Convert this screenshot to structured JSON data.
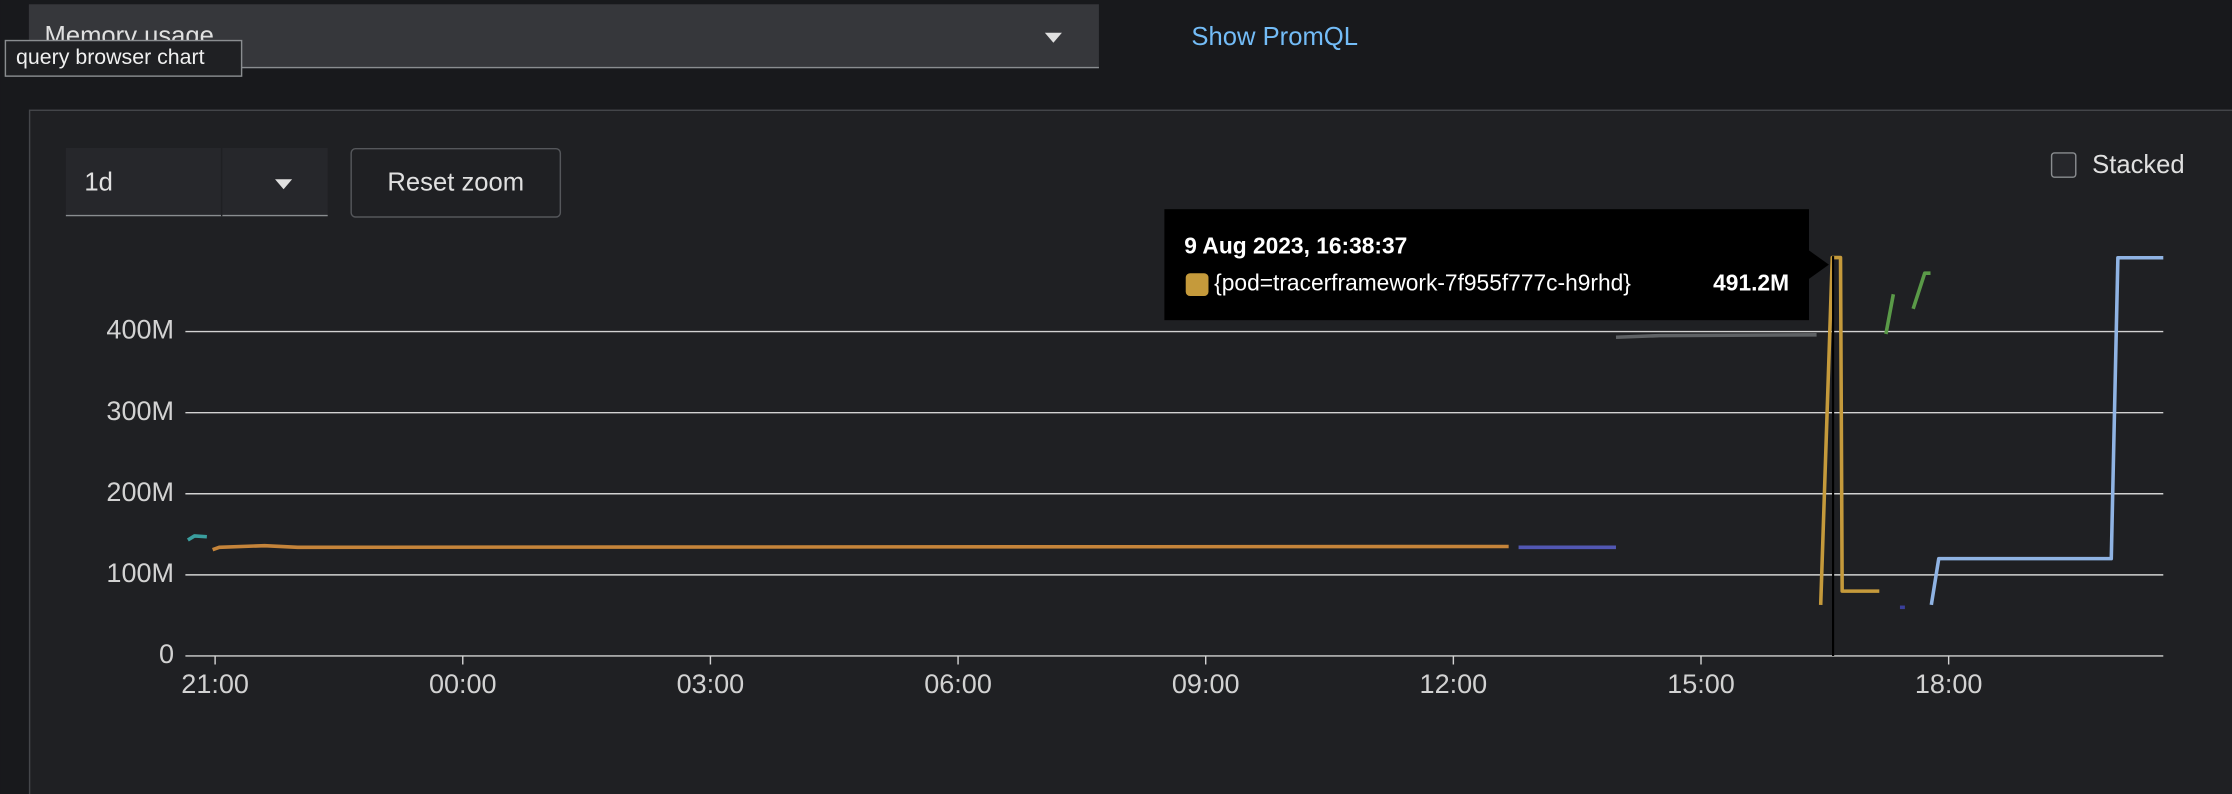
{
  "header": {
    "query_select": "Memory usage",
    "show_promql": "Show PromQL",
    "hover_label": "query browser chart"
  },
  "toolbar": {
    "span": "1d",
    "reset_zoom": "Reset zoom",
    "stacked": "Stacked"
  },
  "tooltip": {
    "time": "9 Aug 2023, 16:38:37",
    "value": "491.2M"
  },
  "chart_data": {
    "type": "line",
    "xlim": [
      -0.36,
      23.6
    ],
    "ylim": [
      0,
      493000000
    ],
    "xticks": [
      {
        "value": 0,
        "label": "21:00"
      },
      {
        "value": 3,
        "label": "00:00"
      },
      {
        "value": 6,
        "label": "03:00"
      },
      {
        "value": 9,
        "label": "06:00"
      },
      {
        "value": 12,
        "label": "09:00"
      },
      {
        "value": 15,
        "label": "12:00"
      },
      {
        "value": 18,
        "label": "15:00"
      },
      {
        "value": 21,
        "label": "18:00"
      }
    ],
    "yticks": [
      0,
      {
        "value": 100000000,
        "label": "100M"
      },
      {
        "value": 200000000,
        "label": "200M"
      },
      {
        "value": 300000000,
        "label": "300M"
      },
      {
        "value": 400000000,
        "label": "400M"
      }
    ],
    "grid": true,
    "series": [
      {
        "color": "#3a9e9e",
        "x": [
          -0.33,
          -0.25,
          -0.1
        ],
        "values": [
          143000000,
          148000000,
          147000000
        ]
      },
      {
        "color": "#c5843a",
        "x": [
          -0.03,
          0.05,
          0.6,
          1,
          15.67
        ],
        "values": [
          131000000,
          134000000,
          136000000,
          134000000,
          135000000
        ]
      },
      {
        "color": "#5257b3",
        "x": [
          15.79,
          16.97
        ],
        "values": [
          134000000,
          134000000
        ]
      },
      {
        "color": "#5f6265",
        "x": [
          16.97,
          17.5,
          19.4
        ],
        "values": [
          393000000,
          395000000,
          396000000
        ]
      },
      {
        "name": "{pod=tracerframework-7f955f777c-h9rhd}",
        "color": "#c59a3b",
        "x": [
          19.45,
          19.59,
          19.69,
          19.71,
          20.16
        ],
        "values": [
          63000000,
          491200000,
          491200000,
          80000000,
          80000000
        ]
      },
      {
        "color": "#5a9a48",
        "x": [
          20.24,
          20.33,
          null,
          20.57,
          20.71,
          20.78
        ],
        "values": [
          397000000,
          446000000,
          null,
          428000000,
          472000000,
          472000000
        ]
      },
      {
        "color": "#3a3f9a",
        "x": [
          20.41,
          20.47
        ],
        "values": [
          60000000,
          60000000
        ]
      },
      {
        "color": "#8fb3e3",
        "x": [
          20.79,
          20.88,
          22.97,
          23.05,
          23.6
        ],
        "values": [
          63000000,
          120000000,
          120000000,
          491000000,
          491000000
        ]
      }
    ],
    "crosshair_x": 19.6
  }
}
